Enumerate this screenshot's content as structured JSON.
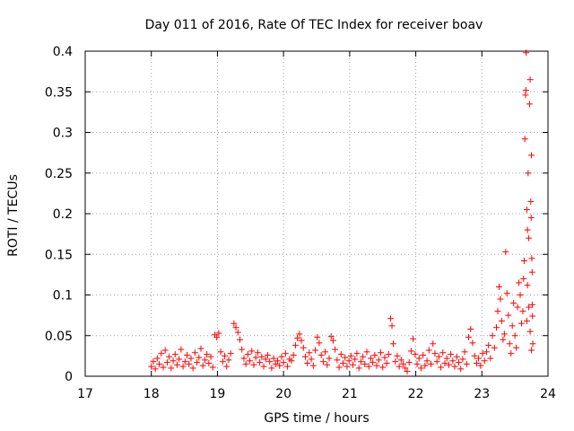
{
  "chart_data": {
    "type": "scatter",
    "title": "Day 011 of 2016, Rate Of TEC Index for receiver boav",
    "xlabel": "GPS time / hours",
    "ylabel": "ROTI / TECUs",
    "xlim": [
      17,
      24
    ],
    "ylim": [
      0,
      0.4
    ],
    "xticks": [
      17,
      18,
      19,
      20,
      21,
      22,
      23,
      24
    ],
    "xtick_labels": [
      "17",
      "18",
      "19",
      "20",
      "21",
      "22",
      "23",
      "24"
    ],
    "yticks": [
      0,
      0.05,
      0.1,
      0.15,
      0.2,
      0.25,
      0.3,
      0.35,
      0.4
    ],
    "ytick_labels": [
      "0",
      "0.05",
      "0.1",
      "0.15",
      "0.2",
      "0.25",
      "0.3",
      "0.35",
      "0.4"
    ],
    "grid": true,
    "marker": "+",
    "color": "#ff0000",
    "series": [
      {
        "name": "ROTI",
        "points": [
          [
            18.0,
            0.012
          ],
          [
            18.03,
            0.018
          ],
          [
            18.06,
            0.009
          ],
          [
            18.09,
            0.022
          ],
          [
            18.12,
            0.015
          ],
          [
            18.15,
            0.028
          ],
          [
            18.18,
            0.011
          ],
          [
            18.21,
            0.032
          ],
          [
            18.24,
            0.017
          ],
          [
            18.27,
            0.024
          ],
          [
            18.3,
            0.01
          ],
          [
            18.33,
            0.019
          ],
          [
            18.36,
            0.027
          ],
          [
            18.39,
            0.014
          ],
          [
            18.42,
            0.021
          ],
          [
            18.45,
            0.033
          ],
          [
            18.48,
            0.012
          ],
          [
            18.51,
            0.018
          ],
          [
            18.54,
            0.026
          ],
          [
            18.57,
            0.015
          ],
          [
            18.6,
            0.022
          ],
          [
            18.63,
            0.01
          ],
          [
            18.66,
            0.029
          ],
          [
            18.69,
            0.017
          ],
          [
            18.72,
            0.023
          ],
          [
            18.75,
            0.034
          ],
          [
            18.78,
            0.013
          ],
          [
            18.81,
            0.02
          ],
          [
            18.84,
            0.027
          ],
          [
            18.87,
            0.016
          ],
          [
            18.9,
            0.024
          ],
          [
            18.93,
            0.011
          ],
          [
            18.96,
            0.051
          ],
          [
            18.99,
            0.048
          ],
          [
            19.02,
            0.053
          ],
          [
            19.05,
            0.03
          ],
          [
            19.08,
            0.018
          ],
          [
            19.11,
            0.025
          ],
          [
            19.14,
            0.012
          ],
          [
            19.17,
            0.02
          ],
          [
            19.2,
            0.028
          ],
          [
            19.25,
            0.065
          ],
          [
            19.28,
            0.06
          ],
          [
            19.31,
            0.054
          ],
          [
            19.34,
            0.045
          ],
          [
            19.37,
            0.033
          ],
          [
            19.4,
            0.022
          ],
          [
            19.43,
            0.015
          ],
          [
            19.46,
            0.027
          ],
          [
            19.49,
            0.019
          ],
          [
            19.52,
            0.031
          ],
          [
            19.55,
            0.014
          ],
          [
            19.58,
            0.023
          ],
          [
            19.61,
            0.029
          ],
          [
            19.64,
            0.017
          ],
          [
            19.67,
            0.024
          ],
          [
            19.7,
            0.012
          ],
          [
            19.73,
            0.021
          ],
          [
            19.76,
            0.026
          ],
          [
            19.79,
            0.018
          ],
          [
            19.82,
            0.01
          ],
          [
            19.85,
            0.022
          ],
          [
            19.88,
            0.015
          ],
          [
            19.91,
            0.019
          ],
          [
            19.94,
            0.013
          ],
          [
            19.97,
            0.024
          ],
          [
            20.0,
            0.017
          ],
          [
            20.03,
            0.028
          ],
          [
            20.06,
            0.012
          ],
          [
            20.09,
            0.021
          ],
          [
            20.12,
            0.019
          ],
          [
            20.15,
            0.026
          ],
          [
            20.18,
            0.038
          ],
          [
            20.21,
            0.047
          ],
          [
            20.24,
            0.052
          ],
          [
            20.27,
            0.044
          ],
          [
            20.3,
            0.035
          ],
          [
            20.33,
            0.024
          ],
          [
            20.36,
            0.016
          ],
          [
            20.39,
            0.029
          ],
          [
            20.42,
            0.021
          ],
          [
            20.45,
            0.013
          ],
          [
            20.48,
            0.032
          ],
          [
            20.51,
            0.048
          ],
          [
            20.54,
            0.041
          ],
          [
            20.57,
            0.026
          ],
          [
            20.6,
            0.018
          ],
          [
            20.63,
            0.03
          ],
          [
            20.66,
            0.014
          ],
          [
            20.69,
            0.022
          ],
          [
            20.72,
            0.049
          ],
          [
            20.75,
            0.044
          ],
          [
            20.78,
            0.033
          ],
          [
            20.81,
            0.02
          ],
          [
            20.84,
            0.011
          ],
          [
            20.87,
            0.027
          ],
          [
            20.9,
            0.016
          ],
          [
            20.93,
            0.023
          ],
          [
            20.96,
            0.012
          ],
          [
            20.99,
            0.019
          ],
          [
            21.02,
            0.025
          ],
          [
            21.05,
            0.014
          ],
          [
            21.08,
            0.021
          ],
          [
            21.11,
            0.028
          ],
          [
            21.14,
            0.01
          ],
          [
            21.17,
            0.018
          ],
          [
            21.2,
            0.024
          ],
          [
            21.23,
            0.015
          ],
          [
            21.26,
            0.03
          ],
          [
            21.29,
            0.012
          ],
          [
            21.32,
            0.022
          ],
          [
            21.35,
            0.017
          ],
          [
            21.38,
            0.026
          ],
          [
            21.41,
            0.013
          ],
          [
            21.44,
            0.02
          ],
          [
            21.47,
            0.029
          ],
          [
            21.5,
            0.011
          ],
          [
            21.53,
            0.023
          ],
          [
            21.56,
            0.016
          ],
          [
            21.59,
            0.027
          ],
          [
            21.62,
            0.071
          ],
          [
            21.64,
            0.062
          ],
          [
            21.66,
            0.04
          ],
          [
            21.69,
            0.018
          ],
          [
            21.72,
            0.025
          ],
          [
            21.75,
            0.012
          ],
          [
            21.78,
            0.02
          ],
          [
            21.81,
            0.015
          ],
          [
            21.84,
            0.01
          ],
          [
            21.87,
            0.006
          ],
          [
            21.9,
            0.017
          ],
          [
            21.93,
            0.031
          ],
          [
            21.96,
            0.046
          ],
          [
            21.99,
            0.027
          ],
          [
            22.02,
            0.015
          ],
          [
            22.05,
            0.022
          ],
          [
            22.08,
            0.01
          ],
          [
            22.11,
            0.026
          ],
          [
            22.14,
            0.013
          ],
          [
            22.17,
            0.019
          ],
          [
            22.2,
            0.032
          ],
          [
            22.23,
            0.015
          ],
          [
            22.26,
            0.04
          ],
          [
            22.29,
            0.028
          ],
          [
            22.32,
            0.018
          ],
          [
            22.35,
            0.024
          ],
          [
            22.38,
            0.011
          ],
          [
            22.41,
            0.029
          ],
          [
            22.44,
            0.016
          ],
          [
            22.47,
            0.022
          ],
          [
            22.5,
            0.014
          ],
          [
            22.53,
            0.027
          ],
          [
            22.56,
            0.019
          ],
          [
            22.59,
            0.012
          ],
          [
            22.62,
            0.024
          ],
          [
            22.65,
            0.017
          ],
          [
            22.68,
            0.009
          ],
          [
            22.71,
            0.021
          ],
          [
            22.74,
            0.03
          ],
          [
            22.77,
            0.015
          ],
          [
            22.8,
            0.048
          ],
          [
            22.83,
            0.058
          ],
          [
            22.86,
            0.041
          ],
          [
            22.89,
            0.025
          ],
          [
            22.92,
            0.016
          ],
          [
            22.95,
            0.022
          ],
          [
            22.98,
            0.013
          ],
          [
            23.01,
            0.028
          ],
          [
            23.04,
            0.019
          ],
          [
            23.07,
            0.03
          ],
          [
            23.1,
            0.038
          ],
          [
            23.13,
            0.022
          ],
          [
            23.16,
            0.05
          ],
          [
            23.19,
            0.035
          ],
          [
            23.22,
            0.06
          ],
          [
            23.24,
            0.08
          ],
          [
            23.26,
            0.11
          ],
          [
            23.28,
            0.095
          ],
          [
            23.3,
            0.068
          ],
          [
            23.32,
            0.045
          ],
          [
            23.34,
            0.052
          ],
          [
            23.36,
            0.153
          ],
          [
            23.38,
            0.102
          ],
          [
            23.4,
            0.075
          ],
          [
            23.42,
            0.04
          ],
          [
            23.44,
            0.028
          ],
          [
            23.46,
            0.062
          ],
          [
            23.48,
            0.09
          ],
          [
            23.5,
            0.05
          ],
          [
            23.52,
            0.035
          ],
          [
            23.54,
            0.085
          ],
          [
            23.56,
            0.115
          ],
          [
            23.58,
            0.1
          ],
          [
            23.6,
            0.065
          ],
          [
            23.62,
            0.08
          ],
          [
            23.63,
            0.12
          ],
          [
            23.64,
            0.142
          ],
          [
            23.65,
            0.292
          ],
          [
            23.66,
            0.346
          ],
          [
            23.665,
            0.352
          ],
          [
            23.67,
            0.398
          ],
          [
            23.68,
            0.205
          ],
          [
            23.69,
            0.18
          ],
          [
            23.7,
            0.25
          ],
          [
            23.71,
            0.17
          ],
          [
            23.72,
            0.335
          ],
          [
            23.73,
            0.365
          ],
          [
            23.74,
            0.215
          ],
          [
            23.745,
            0.195
          ],
          [
            23.75,
            0.272
          ],
          [
            23.755,
            0.145
          ],
          [
            23.76,
            0.128
          ],
          [
            23.762,
            0.088
          ],
          [
            23.765,
            0.074
          ],
          [
            23.77,
            0.04
          ],
          [
            23.68,
            0.068
          ],
          [
            23.69,
            0.112
          ],
          [
            23.71,
            0.085
          ],
          [
            23.73,
            0.055
          ],
          [
            23.75,
            0.032
          ]
        ]
      }
    ]
  }
}
